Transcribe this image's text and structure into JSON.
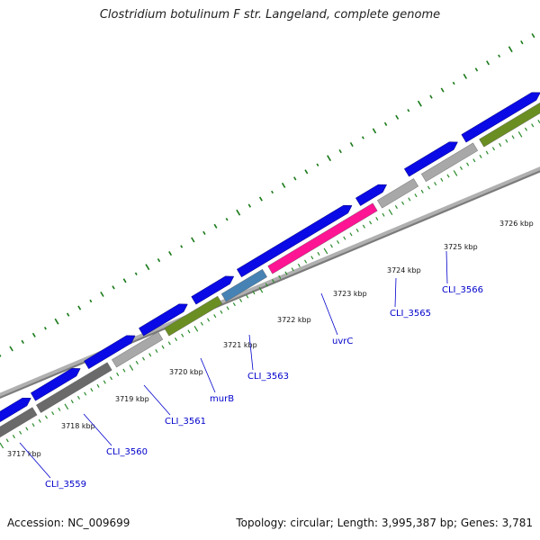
{
  "header": {
    "title": "Clostridium botulinum F str. Langeland, complete genome"
  },
  "footer": {
    "accession": "Accession: NC_009699",
    "topology": "Topology: circular; Length: 3,995,387 bp; Genes: 3,781"
  },
  "map": {
    "tick_labels": [
      "3717 kbp",
      "3718 kbp",
      "3719 kbp",
      "3720 kbp",
      "3721 kbp",
      "3722 kbp",
      "3723 kbp",
      "3724 kbp",
      "3725 kbp",
      "3726 kbp"
    ],
    "gene_labels": [
      "CLI_3559",
      "CLI_3560",
      "CLI_3561",
      "murB",
      "CLI_3563",
      "uvrC",
      "CLI_3565",
      "CLI_3566"
    ],
    "colors": {
      "backbone": "#909090",
      "blue_cds": "#0a0ae6",
      "gray_cds": "#a8a8a8",
      "dark_gray_cds": "#6a6a6a",
      "olive_cds": "#6b8e23",
      "magenta_cds": "#ff1493",
      "steel_cds": "#4682b4",
      "gc_dots": "#1a7a1a",
      "label_blue": "#0000cc"
    }
  }
}
